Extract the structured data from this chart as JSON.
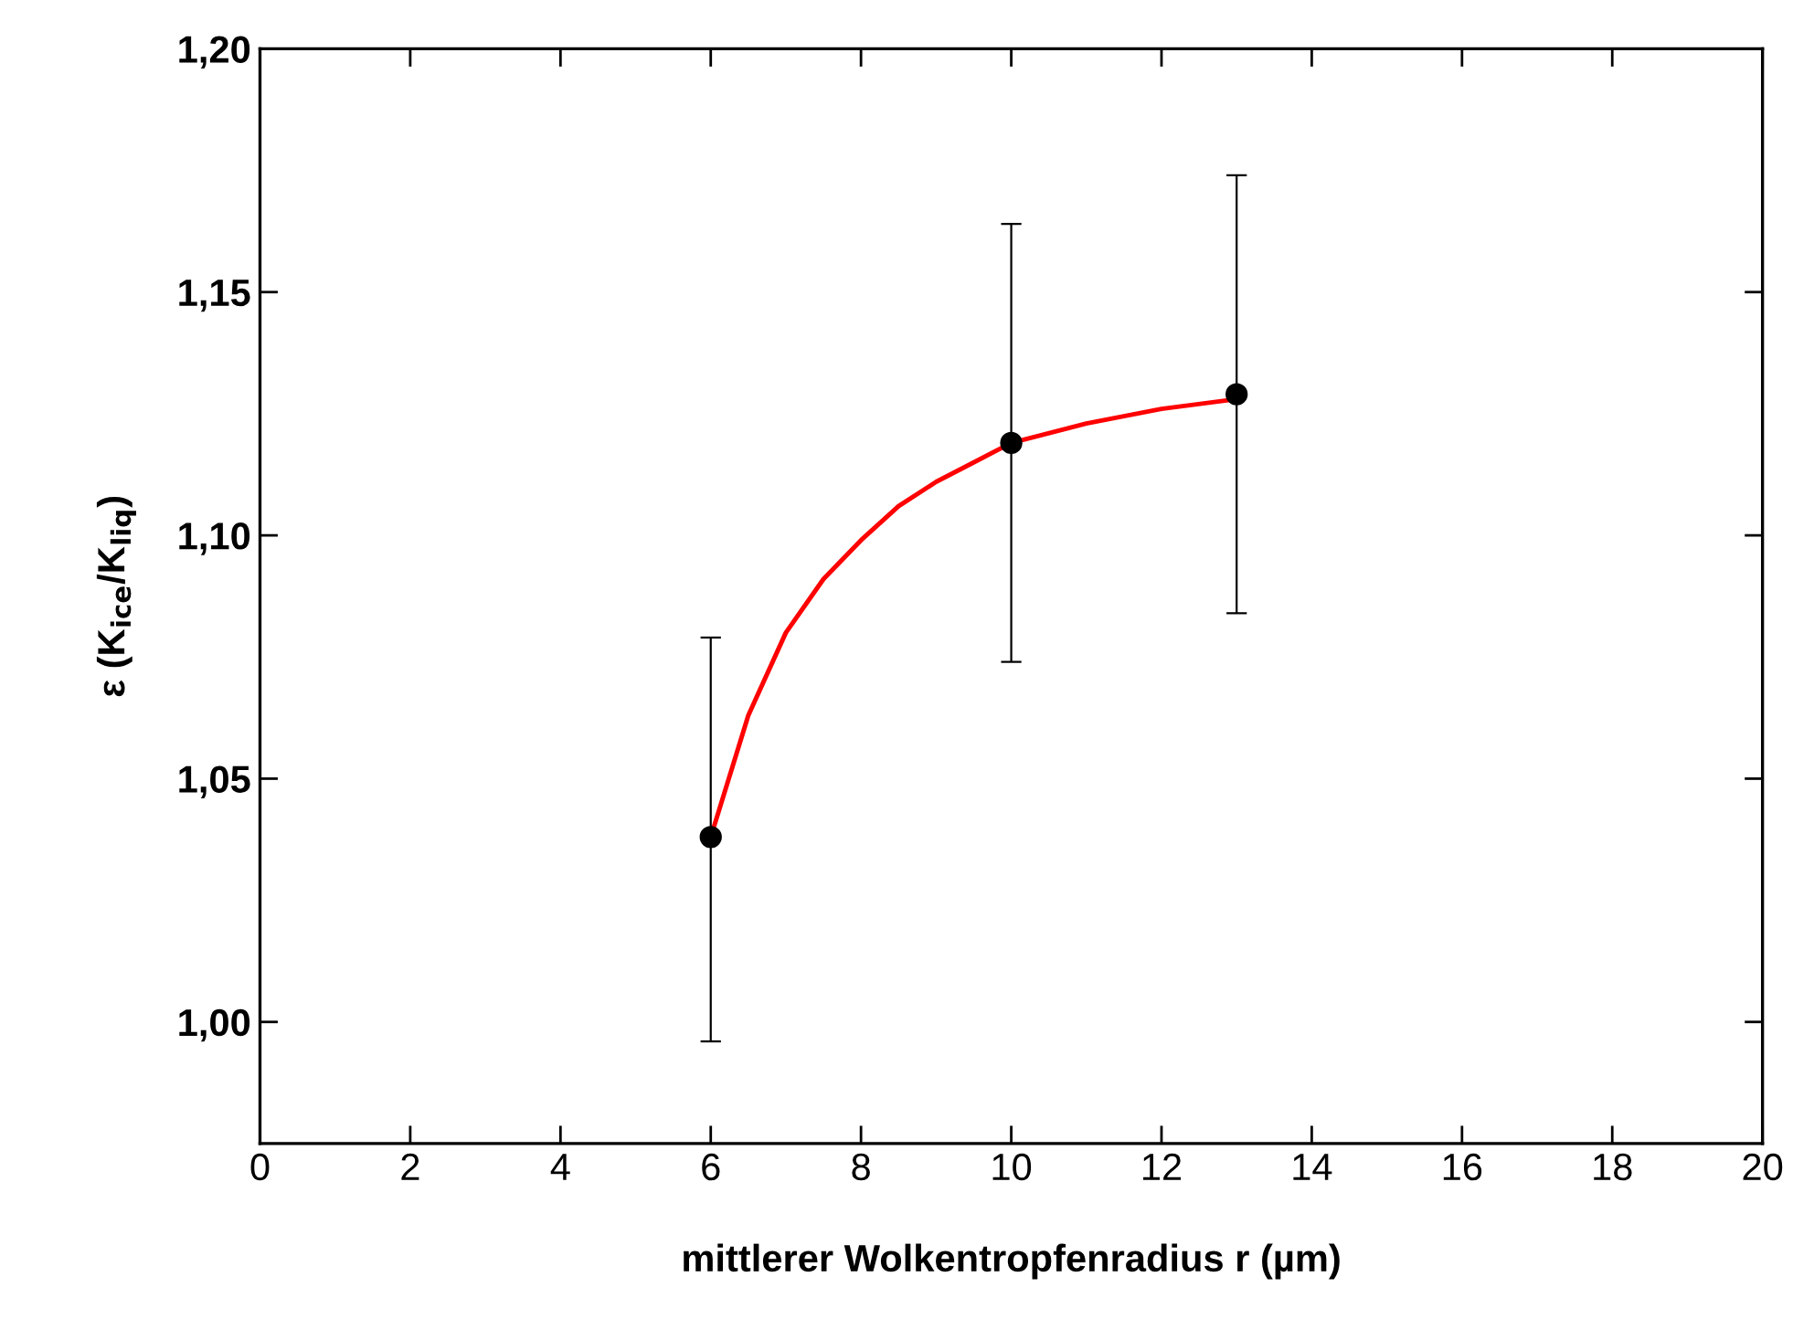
{
  "chart_data": {
    "type": "scatter",
    "xlabel": "mittlerer Wolkentropfenradius r (µm)",
    "ylabel": "ε (K$_{ice}$/K$_{liq}$)",
    "xlim": [
      0,
      20
    ],
    "xticks": [
      0,
      2,
      4,
      6,
      8,
      10,
      12,
      14,
      16,
      18,
      20
    ],
    "ylim": [
      0.975,
      1.2
    ],
    "yticks": [
      {
        "value": 1.0,
        "label": "1,00"
      },
      {
        "value": 1.05,
        "label": "1,05"
      },
      {
        "value": 1.1,
        "label": "1,10"
      },
      {
        "value": 1.15,
        "label": "1,15"
      },
      {
        "value": 1.2,
        "label": "1,20"
      }
    ],
    "grid": false,
    "legend": false,
    "series": [
      {
        "type": "line",
        "color": "#ff0000",
        "marker": "none",
        "line_style": "solid",
        "x": [
          6,
          6.5,
          7,
          7.5,
          8,
          8.5,
          9,
          9.5,
          10,
          11,
          12,
          13
        ],
        "values": [
          1.038,
          1.063,
          1.08,
          1.091,
          1.099,
          1.106,
          1.111,
          1.115,
          1.119,
          1.123,
          1.126,
          1.128
        ]
      },
      {
        "color": "#000000",
        "marker": "circle",
        "x": [
          6,
          10,
          13
        ],
        "values": [
          1.038,
          1.119,
          1.129
        ],
        "errors": [
          [
            0.996,
            1.079
          ],
          [
            1.074,
            1.164
          ],
          [
            1.084,
            1.174
          ]
        ]
      }
    ]
  }
}
